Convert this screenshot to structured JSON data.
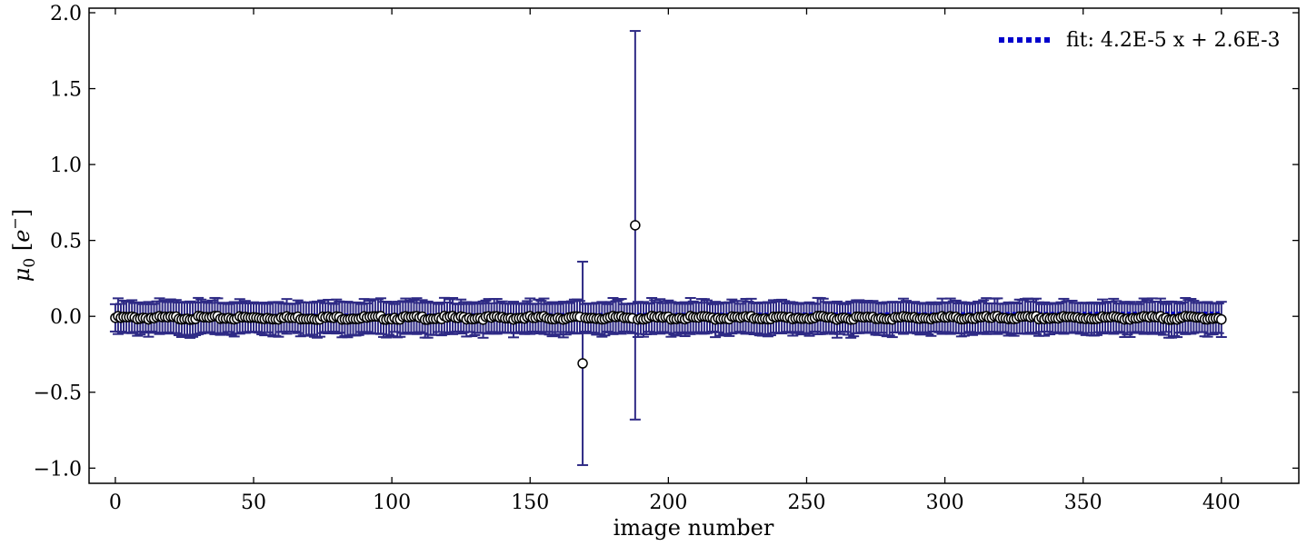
{
  "chart_data": {
    "type": "scatter",
    "xlabel": "image number",
    "ylabel": "μ0 [e−]",
    "ylabel_main": "μ",
    "ylabel_sub": "0",
    "ylabel_unit_open": " [",
    "ylabel_unit": "e",
    "ylabel_unit_sup": "−",
    "ylabel_unit_close": "]",
    "xlim": [
      -9.5,
      428
    ],
    "ylim": [
      -1.1,
      2.03
    ],
    "xticks": [
      0,
      50,
      100,
      150,
      200,
      250,
      300,
      350,
      400
    ],
    "xtick_labels": [
      "0",
      "50",
      "100",
      "150",
      "200",
      "250",
      "300",
      "350",
      "400"
    ],
    "yticks": [
      -1.0,
      -0.5,
      0.0,
      0.5,
      1.0,
      1.5,
      2.0
    ],
    "ytick_labels": [
      "−1.0",
      "−0.5",
      "0.0",
      "0.5",
      "1.0",
      "1.5",
      "2.0"
    ],
    "grid": false,
    "legend": {
      "position": "top-right",
      "entries": [
        {
          "label": "fit: 4.2E-5 x + 2.6E-3",
          "style": "dotted",
          "color": "#0000cc"
        }
      ]
    },
    "fit": {
      "slope": 4.2e-05,
      "intercept": 0.0026
    },
    "series": [
      {
        "x_start": 0,
        "x_end": 400,
        "y_typical": -0.01,
        "err_typical": 0.09,
        "marker_face": "#ffffff",
        "marker_edge": "#000000",
        "errorbar_color": "#2e2a85",
        "outliers": [
          {
            "x": 169,
            "y": -0.31,
            "err": 0.67
          },
          {
            "x": 188,
            "y": 0.6,
            "err": 1.28
          }
        ]
      }
    ]
  }
}
